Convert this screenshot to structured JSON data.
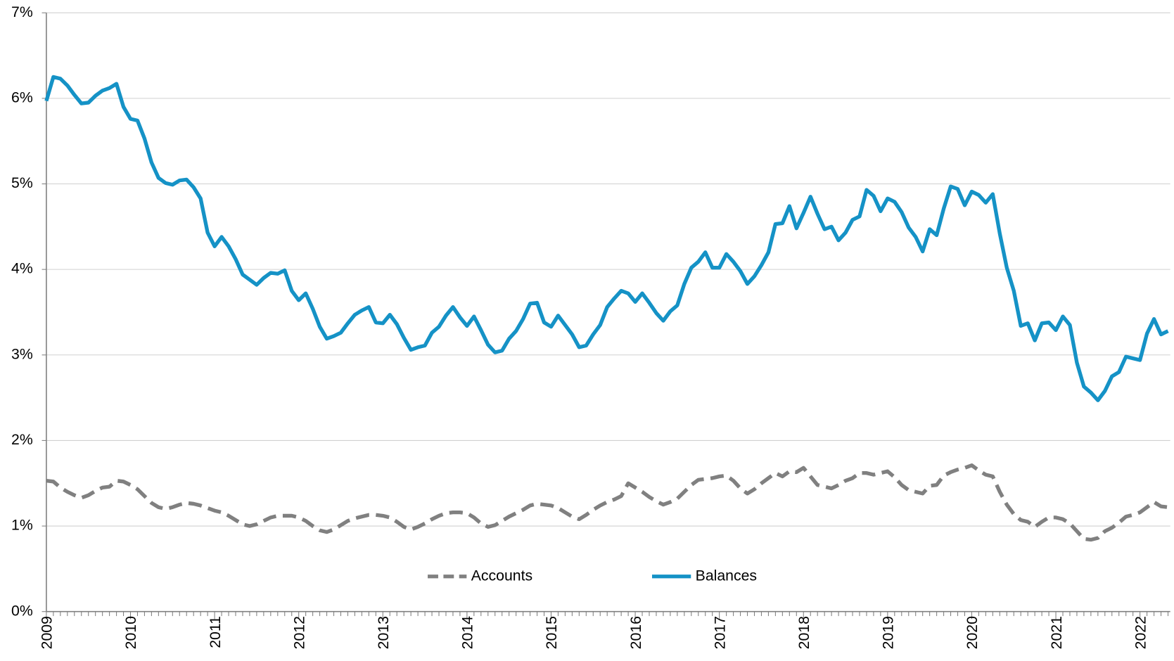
{
  "chart_data": {
    "type": "line",
    "categories": [
      "2009",
      null,
      null,
      null,
      null,
      null,
      null,
      null,
      null,
      null,
      null,
      null,
      "2010",
      null,
      null,
      null,
      null,
      null,
      null,
      null,
      null,
      null,
      null,
      null,
      "2011",
      null,
      null,
      null,
      null,
      null,
      null,
      null,
      null,
      null,
      null,
      null,
      "2012",
      null,
      null,
      null,
      null,
      null,
      null,
      null,
      null,
      null,
      null,
      null,
      "2013",
      null,
      null,
      null,
      null,
      null,
      null,
      null,
      null,
      null,
      null,
      null,
      "2014",
      null,
      null,
      null,
      null,
      null,
      null,
      null,
      null,
      null,
      null,
      null,
      "2015",
      null,
      null,
      null,
      null,
      null,
      null,
      null,
      null,
      null,
      null,
      null,
      "2016",
      null,
      null,
      null,
      null,
      null,
      null,
      null,
      null,
      null,
      null,
      null,
      "2017",
      null,
      null,
      null,
      null,
      null,
      null,
      null,
      null,
      null,
      null,
      null,
      "2018",
      null,
      null,
      null,
      null,
      null,
      null,
      null,
      null,
      null,
      null,
      null,
      "2019",
      null,
      null,
      null,
      null,
      null,
      null,
      null,
      null,
      null,
      null,
      null,
      "2020",
      null,
      null,
      null,
      null,
      null,
      null,
      null,
      null,
      null,
      null,
      null,
      "2021",
      null,
      null,
      null,
      null,
      null,
      null,
      null,
      null,
      null,
      null,
      null,
      "2022",
      null,
      null,
      null,
      null
    ],
    "series": [
      {
        "name": "Accounts",
        "color": "#808080",
        "dash": true,
        "values": [
          1.53,
          1.52,
          1.45,
          1.4,
          1.36,
          1.33,
          1.36,
          1.41,
          1.45,
          1.46,
          1.53,
          1.52,
          1.48,
          1.43,
          1.35,
          1.27,
          1.22,
          1.2,
          1.22,
          1.25,
          1.27,
          1.26,
          1.24,
          1.21,
          1.18,
          1.16,
          1.12,
          1.07,
          1.02,
          1.0,
          1.02,
          1.06,
          1.1,
          1.12,
          1.12,
          1.12,
          1.1,
          1.06,
          1.0,
          0.95,
          0.93,
          0.96,
          1.01,
          1.06,
          1.09,
          1.11,
          1.13,
          1.13,
          1.12,
          1.1,
          1.05,
          0.99,
          0.96,
          0.99,
          1.03,
          1.08,
          1.12,
          1.15,
          1.16,
          1.16,
          1.15,
          1.1,
          1.03,
          0.99,
          1.01,
          1.06,
          1.11,
          1.15,
          1.19,
          1.24,
          1.26,
          1.25,
          1.24,
          1.21,
          1.16,
          1.11,
          1.08,
          1.13,
          1.19,
          1.24,
          1.28,
          1.31,
          1.35,
          1.5,
          1.45,
          1.4,
          1.34,
          1.29,
          1.25,
          1.28,
          1.32,
          1.4,
          1.48,
          1.54,
          1.55,
          1.56,
          1.58,
          1.59,
          1.53,
          1.44,
          1.38,
          1.43,
          1.5,
          1.56,
          1.62,
          1.58,
          1.64,
          1.63,
          1.68,
          1.58,
          1.48,
          1.46,
          1.44,
          1.48,
          1.53,
          1.56,
          1.62,
          1.62,
          1.6,
          1.62,
          1.64,
          1.57,
          1.48,
          1.42,
          1.4,
          1.38,
          1.47,
          1.48,
          1.59,
          1.63,
          1.66,
          1.68,
          1.71,
          1.65,
          1.6,
          1.58,
          1.4,
          1.25,
          1.14,
          1.07,
          1.05,
          0.99,
          1.05,
          1.1,
          1.1,
          1.08,
          1.03,
          0.94,
          0.85,
          0.84,
          0.86,
          0.94,
          0.98,
          1.04,
          1.11,
          1.13,
          1.16,
          1.22,
          1.28,
          1.23,
          1.22
        ]
      },
      {
        "name": "Balances",
        "color": "#1592c6",
        "dash": false,
        "values": [
          5.97,
          6.25,
          6.23,
          6.15,
          6.04,
          5.94,
          5.95,
          6.03,
          6.09,
          6.12,
          6.17,
          5.9,
          5.76,
          5.74,
          5.53,
          5.25,
          5.07,
          5.01,
          4.99,
          5.04,
          5.05,
          4.96,
          4.83,
          4.43,
          4.27,
          4.38,
          4.27,
          4.12,
          3.94,
          3.88,
          3.82,
          3.9,
          3.96,
          3.95,
          3.99,
          3.75,
          3.64,
          3.72,
          3.54,
          3.33,
          3.19,
          3.22,
          3.26,
          3.37,
          3.47,
          3.52,
          3.56,
          3.38,
          3.37,
          3.47,
          3.36,
          3.2,
          3.06,
          3.09,
          3.11,
          3.26,
          3.33,
          3.46,
          3.56,
          3.44,
          3.34,
          3.45,
          3.29,
          3.12,
          3.03,
          3.05,
          3.19,
          3.28,
          3.42,
          3.6,
          3.61,
          3.38,
          3.33,
          3.46,
          3.35,
          3.24,
          3.09,
          3.11,
          3.24,
          3.35,
          3.56,
          3.66,
          3.75,
          3.72,
          3.62,
          3.72,
          3.61,
          3.49,
          3.4,
          3.51,
          3.58,
          3.83,
          4.02,
          4.09,
          4.2,
          4.02,
          4.02,
          4.18,
          4.09,
          3.98,
          3.83,
          3.92,
          4.05,
          4.2,
          4.53,
          4.54,
          4.74,
          4.48,
          4.66,
          4.85,
          4.65,
          4.47,
          4.5,
          4.34,
          4.43,
          4.58,
          4.62,
          4.93,
          4.86,
          4.68,
          4.83,
          4.79,
          4.67,
          4.49,
          4.38,
          4.21,
          4.47,
          4.4,
          4.71,
          4.97,
          4.94,
          4.75,
          4.91,
          4.87,
          4.78,
          4.88,
          4.42,
          4.02,
          3.75,
          3.34,
          3.37,
          3.17,
          3.37,
          3.38,
          3.29,
          3.45,
          3.35,
          2.91,
          2.63,
          2.56,
          2.47,
          2.58,
          2.75,
          2.8,
          2.98,
          2.96,
          2.94,
          3.25,
          3.42,
          3.24,
          3.28
        ]
      }
    ],
    "ylim": [
      0,
      7
    ],
    "yticks": [
      {
        "value": 0,
        "label": "0%"
      },
      {
        "value": 1,
        "label": "1%"
      },
      {
        "value": 2,
        "label": "2%"
      },
      {
        "value": 3,
        "label": "3%"
      },
      {
        "value": 4,
        "label": "4%"
      },
      {
        "value": 5,
        "label": "5%"
      },
      {
        "value": 6,
        "label": "6%"
      },
      {
        "value": 7,
        "label": "7%"
      }
    ],
    "grid": true,
    "legend": "bottom"
  }
}
